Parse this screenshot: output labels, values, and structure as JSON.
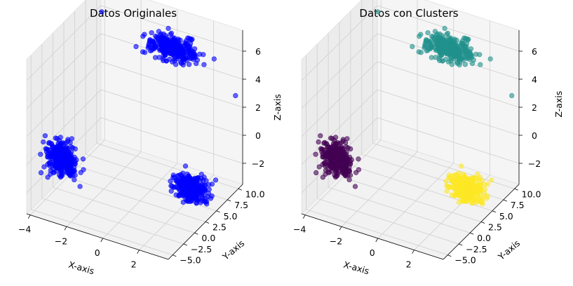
{
  "chart_data": [
    {
      "type": "scatter",
      "title": "Datos Originales",
      "xlabel": "X-axis",
      "ylabel": "Y-axis",
      "zlabel": "Z-axis",
      "x_ticks": [
        "−4",
        "−2",
        "0",
        "2"
      ],
      "y_ticks": [
        "−5.0",
        "−2.5",
        "0.0",
        "2.5",
        "5.0",
        "7.5",
        "10.0"
      ],
      "z_ticks": [
        "−2",
        "0",
        "2",
        "4",
        "6"
      ],
      "xlim": [
        -4.2,
        3.6
      ],
      "ylim": [
        -6,
        11
      ],
      "zlim": [
        -3.5,
        7.5
      ],
      "grid": true,
      "series": [
        {
          "color": "#0000ff",
          "center": [
            -3.0,
            -3.0,
            0.0
          ],
          "spread": [
            0.7,
            1.2,
            1.0
          ],
          "count": 300
        },
        {
          "color": "#0000ff",
          "center": [
            0.0,
            10.0,
            5.0
          ],
          "spread": [
            1.2,
            1.0,
            0.7
          ],
          "count": 300
        },
        {
          "color": "#0000ff",
          "center": [
            2.5,
            4.0,
            -2.0
          ],
          "spread": [
            0.8,
            1.0,
            0.8
          ],
          "count": 300
        }
      ]
    },
    {
      "type": "scatter",
      "title": "Datos con Clusters",
      "xlabel": "X-axis",
      "ylabel": "Y-axis",
      "zlabel": "Z-axis",
      "x_ticks": [
        "−4",
        "−2",
        "0",
        "2"
      ],
      "y_ticks": [
        "−5.0",
        "−2.5",
        "0.0",
        "2.5",
        "5.0",
        "7.5",
        "10.0"
      ],
      "z_ticks": [
        "−2",
        "0",
        "2",
        "4",
        "6"
      ],
      "xlim": [
        -4.2,
        3.6
      ],
      "ylim": [
        -6,
        11
      ],
      "zlim": [
        -3.5,
        7.5
      ],
      "grid": true,
      "series": [
        {
          "color": "#440154",
          "center": [
            -3.0,
            -3.0,
            0.0
          ],
          "spread": [
            0.7,
            1.2,
            1.0
          ],
          "count": 300
        },
        {
          "color": "#21918c",
          "center": [
            0.0,
            10.0,
            5.0
          ],
          "spread": [
            1.2,
            1.0,
            0.7
          ],
          "count": 300
        },
        {
          "color": "#fde725",
          "center": [
            2.5,
            4.0,
            -2.0
          ],
          "spread": [
            0.8,
            1.0,
            0.8
          ],
          "count": 300
        }
      ]
    }
  ]
}
